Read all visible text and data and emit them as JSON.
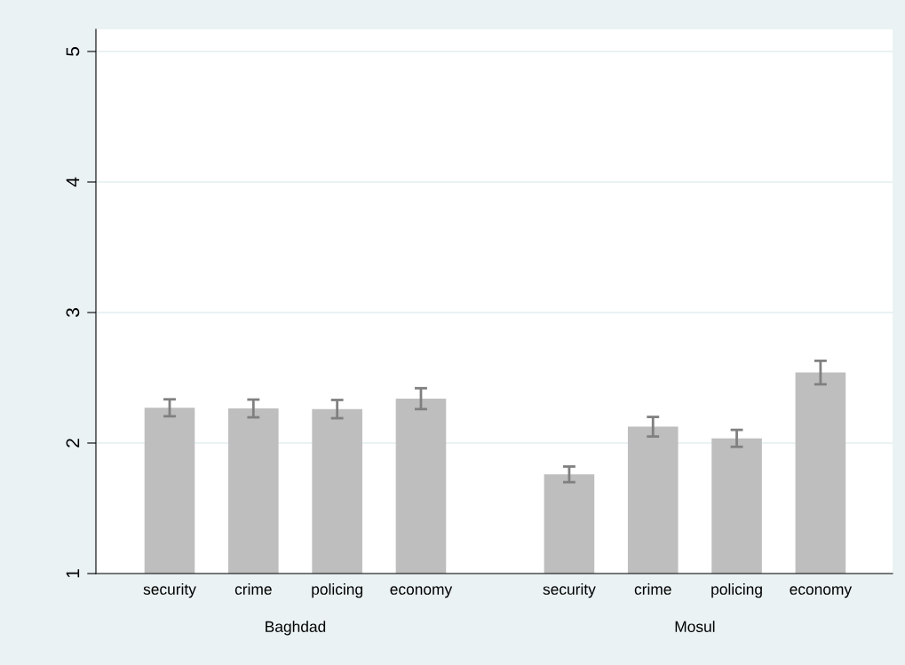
{
  "chart_data": {
    "type": "bar",
    "categories": [
      "security",
      "crime",
      "policing",
      "economy",
      "security",
      "crime",
      "policing",
      "economy"
    ],
    "values": [
      2.27,
      2.265,
      2.26,
      2.34,
      1.76,
      2.125,
      2.036,
      2.54
    ],
    "errors": [
      0.065,
      0.068,
      0.07,
      0.08,
      0.06,
      0.075,
      0.065,
      0.09
    ],
    "color": "#bebebe",
    "annotations": [
      "Baghdad",
      "Mosul"
    ],
    "ylim": [
      1,
      5.17
    ],
    "yticks": [
      1,
      2,
      3,
      4,
      5
    ],
    "grid": "y"
  }
}
